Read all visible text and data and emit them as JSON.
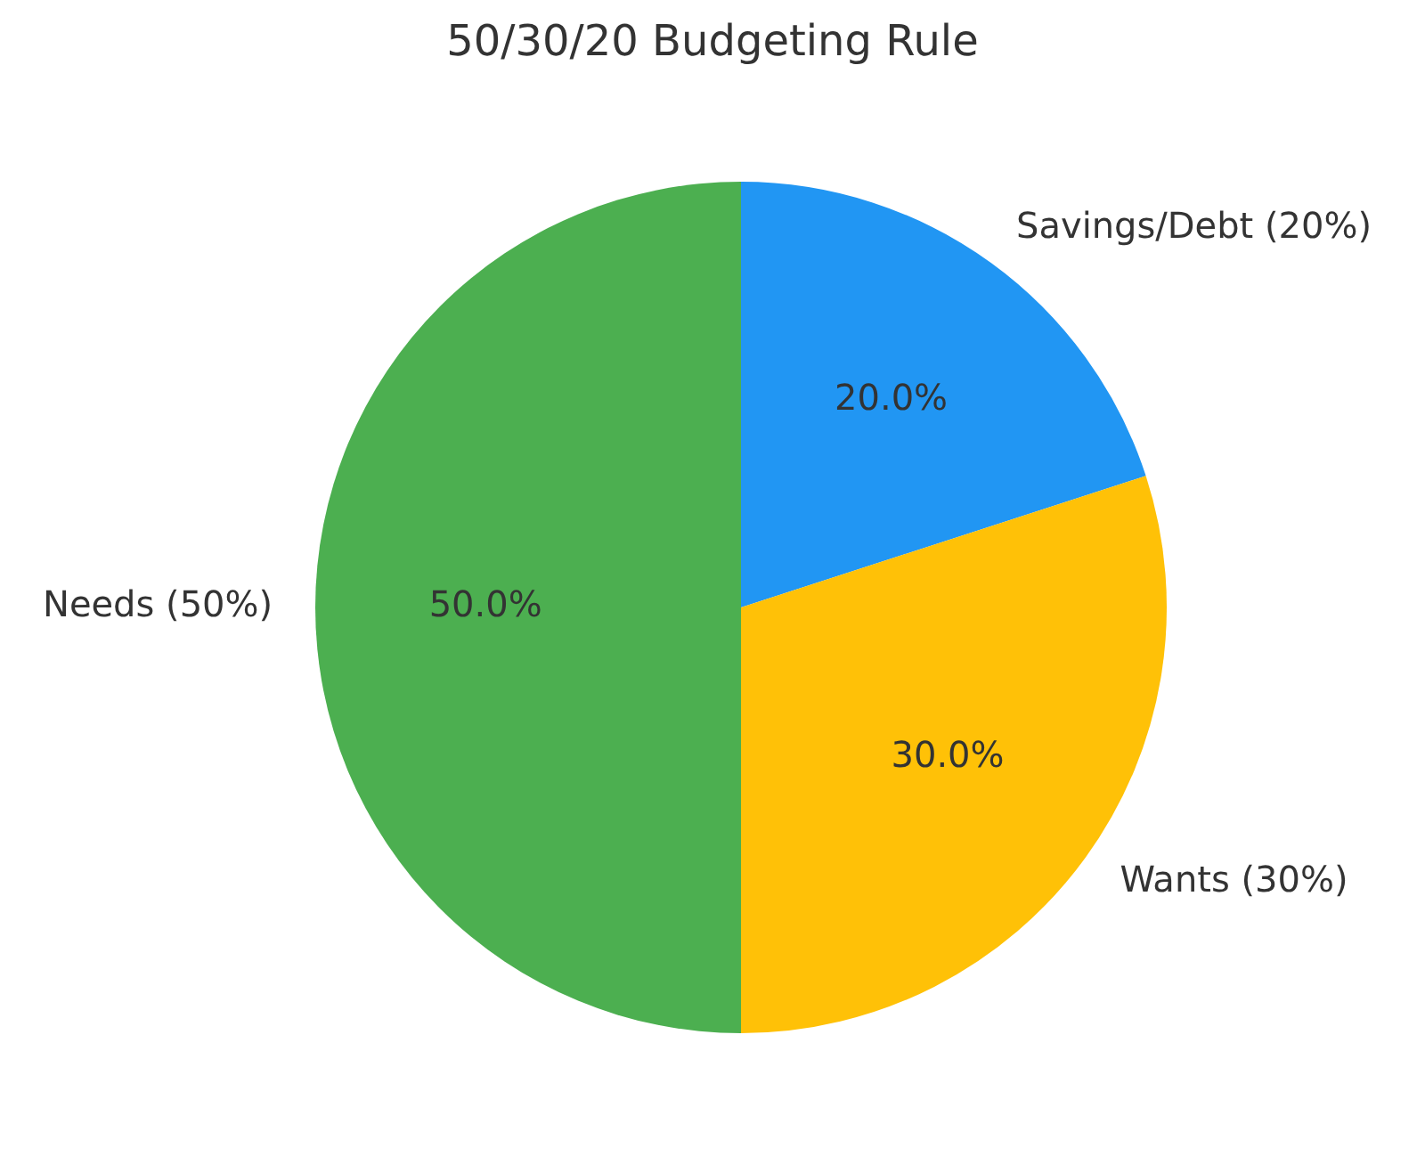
{
  "chart_data": {
    "type": "pie",
    "title": "50/30/20 Budgeting Rule",
    "categories": [
      "Savings/Debt (20%)",
      "Wants (30%)",
      "Needs (50%)"
    ],
    "values": [
      20,
      30,
      50
    ],
    "colors": [
      "#2196f3",
      "#ffc107",
      "#4caf50"
    ],
    "value_labels": [
      "20.0%",
      "30.0%",
      "50.0%"
    ]
  }
}
